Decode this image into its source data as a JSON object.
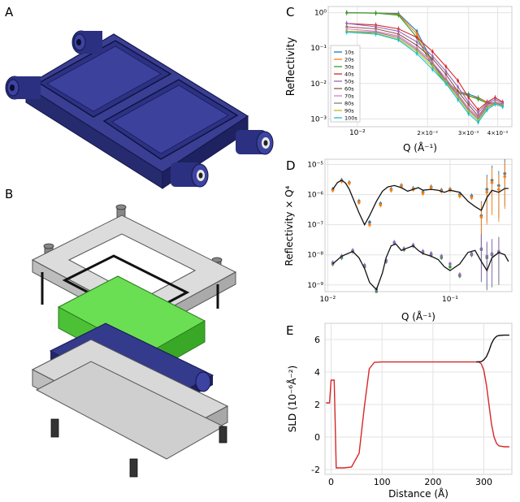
{
  "panels": {
    "A": "A",
    "B": "B",
    "C": "C",
    "D": "D",
    "E": "E"
  },
  "colors": {
    "cell_blue": "#2f3584",
    "cell_blue_dark": "#1e2260",
    "frame_gray": "#d7d7d7",
    "green_block": "#52c93d",
    "curve_red": "#d62728",
    "curve_black": "#111111"
  },
  "chart_data": [
    {
      "id": "C",
      "type": "line",
      "xlabel": "Q (Å⁻¹)",
      "ylabel": "Reflectivity",
      "xscale": "log",
      "yscale": "log",
      "xlim": [
        0.0075,
        0.046
      ],
      "ylim": [
        0.0006,
        1.5
      ],
      "xtick_labels": [
        {
          "value": 0.01,
          "label": "10⁻²"
        },
        {
          "value": 0.02,
          "label": "2×10⁻²"
        },
        {
          "value": 0.03,
          "label": "3×10⁻²"
        },
        {
          "value": 0.04,
          "label": "4×10⁻²"
        }
      ],
      "ytick_labels": [
        {
          "value": 1,
          "label": "10⁰"
        },
        {
          "value": 0.1,
          "label": "10⁻¹"
        },
        {
          "value": 0.01,
          "label": "10⁻²"
        },
        {
          "value": 0.001,
          "label": "10⁻³"
        }
      ],
      "grid": true,
      "legend_placement": "left",
      "series": [
        {
          "name": "10s",
          "color": "#1f77b4",
          "x": [
            0.009,
            0.012,
            0.015,
            0.018,
            0.021,
            0.024,
            0.027,
            0.03,
            0.033,
            0.036,
            0.039,
            0.042
          ],
          "y": [
            1.0,
            0.98,
            0.95,
            0.3,
            0.04,
            0.012,
            0.006,
            0.005,
            0.004,
            0.003,
            0.0028,
            0.0025
          ]
        },
        {
          "name": "20s",
          "color": "#ff7f0e",
          "x": [
            0.009,
            0.012,
            0.015,
            0.018,
            0.021,
            0.024,
            0.027,
            0.03,
            0.033,
            0.036,
            0.039,
            0.042
          ],
          "y": [
            1.0,
            0.98,
            0.9,
            0.25,
            0.035,
            0.011,
            0.006,
            0.0045,
            0.0038,
            0.003,
            0.0028,
            0.0024
          ]
        },
        {
          "name": "30s",
          "color": "#2ca02c",
          "x": [
            0.009,
            0.012,
            0.015,
            0.018,
            0.021,
            0.024,
            0.027,
            0.03,
            0.033,
            0.036,
            0.039,
            0.042
          ],
          "y": [
            1.0,
            0.97,
            0.85,
            0.2,
            0.03,
            0.01,
            0.0055,
            0.0045,
            0.0036,
            0.0028,
            0.0027,
            0.0023
          ]
        },
        {
          "name": "40s",
          "color": "#d62728",
          "x": [
            0.009,
            0.012,
            0.015,
            0.018,
            0.021,
            0.024,
            0.027,
            0.03,
            0.033,
            0.036,
            0.039,
            0.042
          ],
          "y": [
            0.5,
            0.45,
            0.35,
            0.2,
            0.08,
            0.03,
            0.012,
            0.004,
            0.0018,
            0.003,
            0.004,
            0.003
          ]
        },
        {
          "name": "50s",
          "color": "#9467bd",
          "x": [
            0.009,
            0.012,
            0.015,
            0.018,
            0.021,
            0.024,
            0.027,
            0.03,
            0.033,
            0.036,
            0.039,
            0.042
          ],
          "y": [
            0.5,
            0.4,
            0.3,
            0.15,
            0.06,
            0.022,
            0.008,
            0.003,
            0.0015,
            0.0028,
            0.0035,
            0.0028
          ]
        },
        {
          "name": "60s",
          "color": "#8c564b",
          "x": [
            0.009,
            0.012,
            0.015,
            0.018,
            0.021,
            0.024,
            0.027,
            0.03,
            0.033,
            0.036,
            0.039,
            0.042
          ],
          "y": [
            0.4,
            0.35,
            0.25,
            0.12,
            0.05,
            0.018,
            0.006,
            0.0025,
            0.0012,
            0.0026,
            0.003,
            0.0026
          ]
        },
        {
          "name": "70s",
          "color": "#e377c2",
          "x": [
            0.009,
            0.012,
            0.015,
            0.018,
            0.021,
            0.024,
            0.027,
            0.03,
            0.033,
            0.036,
            0.039,
            0.042
          ],
          "y": [
            0.35,
            0.3,
            0.22,
            0.1,
            0.04,
            0.014,
            0.005,
            0.002,
            0.0011,
            0.0024,
            0.003,
            0.0025
          ]
        },
        {
          "name": "80s",
          "color": "#7f7f7f",
          "x": [
            0.009,
            0.012,
            0.015,
            0.018,
            0.021,
            0.024,
            0.027,
            0.03,
            0.033,
            0.036,
            0.039,
            0.042
          ],
          "y": [
            0.3,
            0.28,
            0.2,
            0.09,
            0.035,
            0.012,
            0.0045,
            0.0018,
            0.001,
            0.0022,
            0.0028,
            0.0024
          ]
        },
        {
          "name": "90s",
          "color": "#bcbd22",
          "x": [
            0.009,
            0.012,
            0.015,
            0.018,
            0.021,
            0.024,
            0.027,
            0.03,
            0.033,
            0.036,
            0.039,
            0.042
          ],
          "y": [
            0.3,
            0.26,
            0.18,
            0.08,
            0.03,
            0.011,
            0.004,
            0.0016,
            0.0009,
            0.002,
            0.0027,
            0.0023
          ]
        },
        {
          "name": "100s",
          "color": "#17becf",
          "x": [
            0.009,
            0.012,
            0.015,
            0.018,
            0.021,
            0.024,
            0.027,
            0.03,
            0.033,
            0.036,
            0.039,
            0.042
          ],
          "y": [
            0.28,
            0.25,
            0.17,
            0.07,
            0.025,
            0.01,
            0.0035,
            0.0014,
            0.0008,
            0.0018,
            0.0026,
            0.0022
          ]
        }
      ]
    },
    {
      "id": "D",
      "type": "line",
      "xlabel": "Q (Å⁻¹)",
      "ylabel": "Reflectivity × Q⁴",
      "xscale": "log",
      "yscale": "log",
      "xlim": [
        0.0095,
        0.32
      ],
      "ylim": [
        6e-10,
        1.5e-05
      ],
      "xtick_labels": [
        {
          "value": 0.01,
          "label": "10⁻²"
        },
        {
          "value": 0.1,
          "label": "10⁻¹"
        }
      ],
      "ytick_labels": [
        {
          "value": 1e-05,
          "label": "10⁻⁵"
        },
        {
          "value": 1e-06,
          "label": "10⁻⁶"
        },
        {
          "value": 1e-07,
          "label": "10⁻⁷"
        },
        {
          "value": 1e-08,
          "label": "10⁻⁸"
        },
        {
          "value": 1e-09,
          "label": "10⁻⁹"
        }
      ],
      "grid": true,
      "series": [
        {
          "color": "#1f77b4",
          "x": [
            0.011,
            0.013,
            0.015,
            0.018,
            0.022,
            0.027,
            0.033,
            0.04,
            0.05,
            0.06,
            0.07,
            0.085,
            0.1,
            0.12,
            0.15,
            0.18,
            0.2,
            0.22,
            0.25,
            0.28
          ],
          "y": [
            1.5e-06,
            3e-06,
            2.5e-06,
            6e-07,
            1.2e-07,
            5e-07,
            1.5e-06,
            2e-06,
            1.6e-06,
            1.2e-06,
            1.8e-06,
            1.4e-06,
            1.5e-06,
            1e-06,
            9e-07,
            2e-07,
            1.5e-06,
            3e-06,
            2e-06,
            5e-06
          ]
        },
        {
          "color": "#ff7f0e",
          "x": [
            0.011,
            0.013,
            0.015,
            0.018,
            0.022,
            0.027,
            0.033,
            0.04,
            0.05,
            0.06,
            0.07,
            0.085,
            0.1,
            0.12,
            0.15,
            0.18,
            0.2,
            0.22,
            0.25,
            0.28
          ],
          "y": [
            1.4e-06,
            2.8e-06,
            2.4e-06,
            5.5e-07,
            1e-07,
            4.5e-07,
            1.4e-06,
            1.9e-06,
            1.5e-06,
            1.1e-06,
            1.7e-06,
            1.3e-06,
            1.4e-06,
            9e-07,
            8e-07,
            1.8e-07,
            1.2e-06,
            2.5e-06,
            1.5e-06,
            4e-06
          ]
        },
        {
          "color": "#2ca02c",
          "x": [
            0.011,
            0.013,
            0.016,
            0.02,
            0.025,
            0.03,
            0.035,
            0.042,
            0.05,
            0.06,
            0.07,
            0.085,
            0.1,
            0.12,
            0.15,
            0.18,
            0.2,
            0.22,
            0.25
          ],
          "y": [
            5e-09,
            8e-09,
            1.3e-08,
            4e-09,
            6e-10,
            6e-09,
            2.5e-08,
            1.5e-08,
            2e-08,
            1.2e-08,
            1e-08,
            8e-09,
            4e-09,
            2e-09,
            1e-08,
            1.5e-08,
            8e-09,
            1e-08,
            1.2e-08
          ]
        },
        {
          "color": "#9467bd",
          "x": [
            0.011,
            0.013,
            0.016,
            0.02,
            0.025,
            0.03,
            0.035,
            0.042,
            0.05,
            0.06,
            0.07,
            0.085,
            0.1,
            0.12,
            0.15,
            0.18,
            0.2,
            0.22,
            0.25
          ],
          "y": [
            5.5e-09,
            9e-09,
            1.4e-08,
            4.5e-09,
            7e-10,
            6.5e-09,
            2.6e-08,
            1.6e-08,
            2.1e-08,
            1.3e-08,
            1.1e-08,
            9e-09,
            5e-09,
            2.2e-09,
            1.1e-08,
            1.6e-08,
            9e-09,
            1.1e-08,
            1.3e-08
          ]
        }
      ],
      "fits": [
        {
          "color": "#111111",
          "x": [
            0.011,
            0.012,
            0.013,
            0.014,
            0.015,
            0.016,
            0.018,
            0.02,
            0.022,
            0.025,
            0.028,
            0.031,
            0.035,
            0.04,
            0.045,
            0.05,
            0.055,
            0.06,
            0.07,
            0.08,
            0.09,
            0.1,
            0.12,
            0.14,
            0.16,
            0.18,
            0.2,
            0.22,
            0.25,
            0.28,
            0.3
          ],
          "y": [
            1.5e-06,
            2.5e-06,
            3e-06,
            2.4e-06,
            1.5e-06,
            8e-07,
            2.5e-07,
            1e-07,
            2e-07,
            6e-07,
            1.3e-06,
            1.8e-06,
            2e-06,
            1.7e-06,
            1.3e-06,
            1.5e-06,
            1.7e-06,
            1.4e-06,
            1.5e-06,
            1.4e-06,
            1.2e-06,
            1.4e-06,
            1.2e-06,
            6e-07,
            4e-07,
            3e-07,
            8e-07,
            1.4e-06,
            1.2e-06,
            1.6e-06,
            1.6e-06
          ]
        },
        {
          "color": "#111111",
          "x": [
            0.011,
            0.013,
            0.016,
            0.018,
            0.02,
            0.022,
            0.025,
            0.028,
            0.03,
            0.033,
            0.036,
            0.04,
            0.045,
            0.05,
            0.055,
            0.06,
            0.07,
            0.08,
            0.09,
            0.1,
            0.12,
            0.14,
            0.16,
            0.18,
            0.2,
            0.22,
            0.25,
            0.28,
            0.3
          ],
          "y": [
            5e-09,
            9e-09,
            1.3e-08,
            8e-09,
            3.5e-09,
            1.2e-09,
            7e-10,
            2.5e-09,
            8e-09,
            2e-08,
            2.3e-08,
            1.4e-08,
            1.7e-08,
            2e-08,
            1.4e-08,
            1.1e-08,
            9e-09,
            7e-09,
            4e-09,
            3e-09,
            5e-09,
            1.2e-08,
            1.4e-08,
            6e-09,
            3e-09,
            8e-09,
            1.2e-08,
            1e-08,
            6e-09
          ]
        }
      ]
    },
    {
      "id": "E",
      "type": "line",
      "xlabel": "Distance (Å)",
      "ylabel": "SLD (10⁻⁶Å⁻²)",
      "xlim": [
        -12,
        355
      ],
      "ylim": [
        -2.3,
        7.0
      ],
      "xticks": [
        0,
        100,
        200,
        300
      ],
      "yticks": [
        -2,
        0,
        2,
        4,
        6
      ],
      "grid": true,
      "series": [
        {
          "color": "#d62728",
          "x": [
            -10,
            -3,
            0,
            3,
            6,
            8,
            10,
            15,
            25,
            40,
            55,
            65,
            75,
            85,
            100,
            150,
            200,
            250,
            280,
            290,
            295,
            300,
            305,
            310,
            315,
            320,
            325,
            330,
            340,
            350
          ],
          "y": [
            2.1,
            2.1,
            3.5,
            3.5,
            3.5,
            1.0,
            -1.9,
            -1.9,
            -1.9,
            -1.85,
            -1.0,
            1.8,
            4.2,
            4.6,
            4.62,
            4.62,
            4.62,
            4.62,
            4.62,
            4.62,
            4.5,
            4.1,
            3.2,
            2.0,
            0.8,
            0.0,
            -0.4,
            -0.55,
            -0.6,
            -0.6
          ]
        },
        {
          "color": "#111111",
          "x": [
            285,
            295,
            300,
            305,
            310,
            315,
            320,
            325,
            330,
            340,
            350
          ],
          "y": [
            4.62,
            4.64,
            4.75,
            4.95,
            5.3,
            5.75,
            6.05,
            6.2,
            6.25,
            6.27,
            6.27
          ]
        }
      ]
    }
  ]
}
